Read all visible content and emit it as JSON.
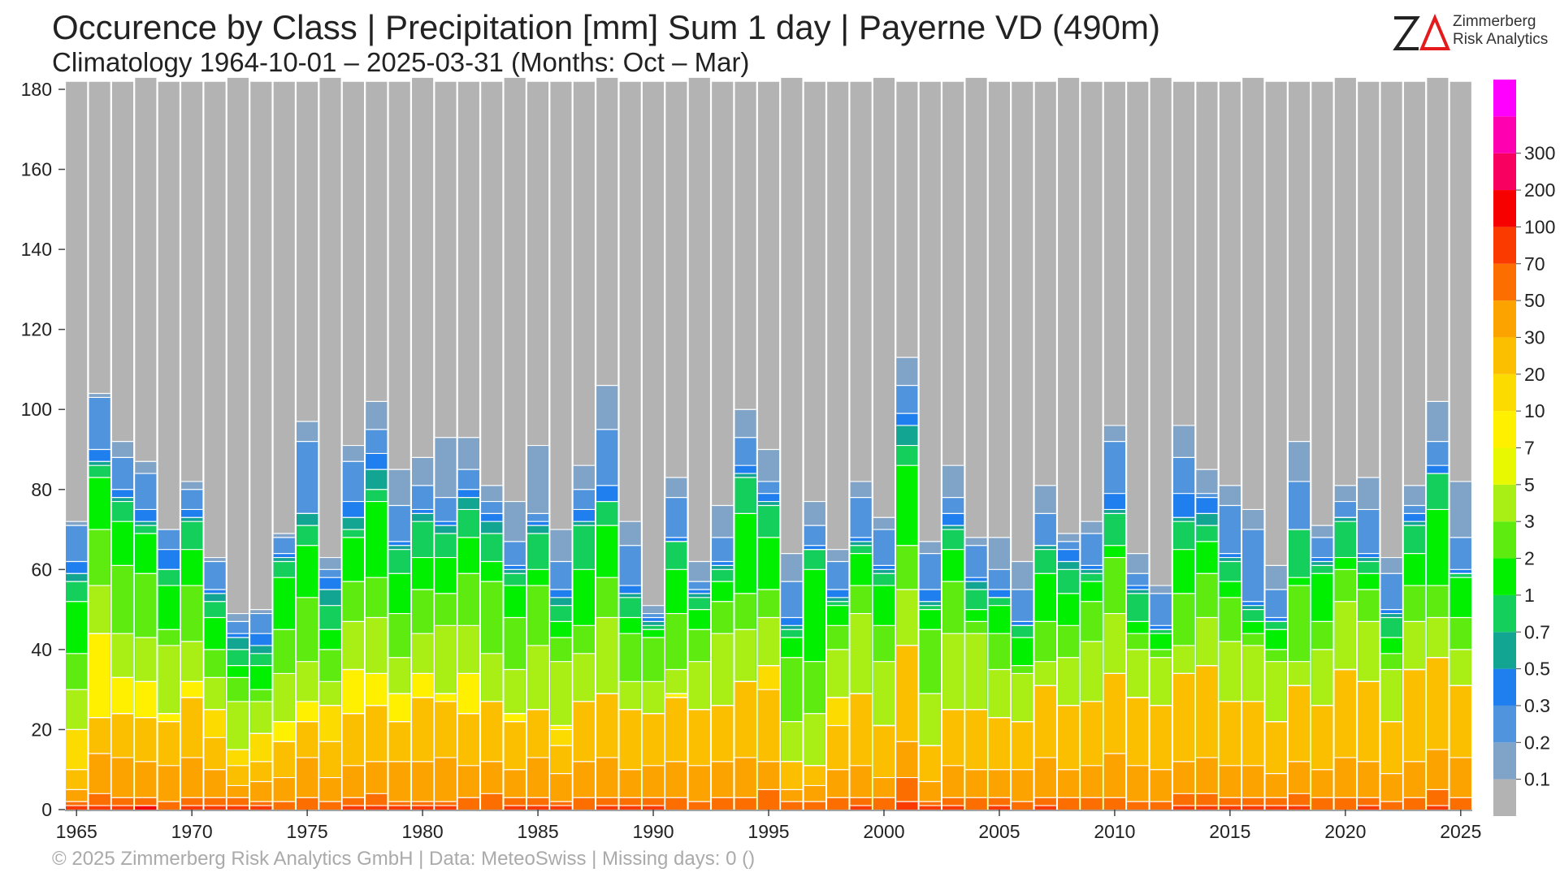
{
  "header": {
    "title": "Occurence by Class | Precipitation [mm] Sum 1 day | Payerne  VD (490m)",
    "subtitle": "Climatology 1964-10-01 – 2025-03-31 (Months: Oct – Mar)"
  },
  "footer": {
    "text": "©  2025 Zimmerberg Risk Analytics GmbH | Data: MeteoSwiss | Missing days: 0 ()"
  },
  "logo": {
    "line1": "Zimmerberg",
    "line2": "Risk Analytics"
  },
  "chart_data": {
    "type": "bar",
    "stacked": true,
    "title": "Occurence by Class | Precipitation [mm] Sum 1 day | Payerne  VD (490m)",
    "x": [
      1965,
      1966,
      1967,
      1968,
      1969,
      1970,
      1971,
      1972,
      1973,
      1974,
      1975,
      1976,
      1977,
      1978,
      1979,
      1980,
      1981,
      1982,
      1983,
      1984,
      1985,
      1986,
      1987,
      1988,
      1989,
      1990,
      1991,
      1992,
      1993,
      1994,
      1995,
      1996,
      1997,
      1998,
      1999,
      2000,
      2001,
      2002,
      2003,
      2004,
      2005,
      2006,
      2007,
      2008,
      2009,
      2010,
      2011,
      2012,
      2013,
      2014,
      2015,
      2016,
      2017,
      2018,
      2019,
      2020,
      2021,
      2022,
      2023,
      2024,
      2025
    ],
    "xticks": [
      1965,
      1970,
      1975,
      1980,
      1985,
      1990,
      1995,
      2000,
      2005,
      2010,
      2015,
      2020,
      2025
    ],
    "yticks": [
      0,
      20,
      40,
      60,
      80,
      100,
      120,
      140,
      160,
      180
    ],
    "ylim": [
      0,
      182
    ],
    "season_days": [
      182,
      182,
      182,
      183,
      182,
      182,
      182,
      183,
      182,
      182,
      182,
      183,
      182,
      182,
      182,
      183,
      182,
      182,
      182,
      183,
      182,
      182,
      182,
      183,
      182,
      182,
      182,
      183,
      182,
      182,
      182,
      183,
      182,
      182,
      182,
      183,
      182,
      182,
      182,
      183,
      182,
      182,
      182,
      183,
      182,
      182,
      182,
      183,
      182,
      182,
      182,
      183,
      182,
      182,
      182,
      183,
      182,
      182,
      182,
      183,
      182
    ],
    "class_labels": [
      "0.1",
      "0.2",
      "0.3",
      "0.5",
      "0.7",
      "1",
      "2",
      "3",
      "5",
      "7",
      "10",
      "20",
      "30",
      "50",
      "70",
      "100",
      "200",
      "300"
    ],
    "colorbar_colors": [
      "#b3b3b3",
      "#7fa4c8",
      "#4f94dc",
      "#1f7fee",
      "#12a591",
      "#14cf5c",
      "#00f000",
      "#5eec10",
      "#a9ee14",
      "#e8f800",
      "#fff000",
      "#fcdc00",
      "#fbbf00",
      "#fca300",
      "#fd6e00",
      "#fb3a00",
      "#f60000",
      "#f8005f",
      "#ff00b0",
      "#ff00ff"
    ],
    "non_dry_totals": [
      72,
      104,
      92,
      87,
      70,
      82,
      63,
      49,
      50,
      69,
      97,
      63,
      91,
      102,
      85,
      88,
      93,
      93,
      81,
      77,
      91,
      70,
      86,
      106,
      72,
      51,
      83,
      62,
      76,
      100,
      90,
      64,
      77,
      65,
      82,
      73,
      113,
      67,
      86,
      68,
      68,
      62,
      81,
      69,
      72,
      96,
      64,
      56,
      96,
      85,
      81,
      75,
      61,
      92,
      71,
      81,
      83,
      63,
      81,
      102,
      82
    ],
    "counts_ge": {
      "0.1": [
        72,
        104,
        92,
        87,
        70,
        82,
        63,
        49,
        50,
        69,
        97,
        63,
        91,
        102,
        85,
        88,
        93,
        93,
        81,
        77,
        91,
        70,
        86,
        106,
        72,
        51,
        83,
        62,
        76,
        100,
        90,
        64,
        77,
        65,
        82,
        73,
        113,
        67,
        86,
        68,
        68,
        62,
        81,
        69,
        72,
        96,
        64,
        56,
        96,
        85,
        81,
        75,
        61,
        92,
        71,
        81,
        83,
        63,
        81,
        102,
        82
      ],
      "0.2": [
        71,
        103,
        88,
        84,
        70,
        80,
        62,
        47,
        49,
        68,
        92,
        60,
        87,
        95,
        76,
        81,
        78,
        85,
        77,
        67,
        74,
        62,
        80,
        95,
        66,
        49,
        78,
        57,
        68,
        93,
        82,
        57,
        71,
        62,
        78,
        70,
        106,
        64,
        78,
        66,
        60,
        55,
        74,
        67,
        69,
        92,
        59,
        54,
        88,
        79,
        76,
        70,
        55,
        82,
        68,
        77,
        75,
        59,
        76,
        92,
        68
      ],
      "0.3": [
        62,
        90,
        80,
        75,
        65,
        75,
        55,
        44,
        44,
        64,
        74,
        58,
        77,
        89,
        67,
        75,
        72,
        80,
        74,
        61,
        72,
        55,
        75,
        81,
        56,
        48,
        68,
        55,
        62,
        86,
        79,
        48,
        66,
        55,
        68,
        61,
        99,
        55,
        74,
        58,
        55,
        47,
        66,
        65,
        61,
        79,
        56,
        46,
        79,
        78,
        64,
        52,
        48,
        70,
        63,
        73,
        64,
        50,
        74,
        86,
        60
      ],
      "0.5": [
        59,
        87,
        78,
        72,
        60,
        73,
        54,
        43,
        41,
        63,
        74,
        55,
        73,
        85,
        66,
        74,
        71,
        78,
        72,
        60,
        71,
        53,
        72,
        77,
        54,
        47,
        67,
        54,
        61,
        84,
        77,
        46,
        65,
        53,
        67,
        60,
        96,
        52,
        71,
        57,
        53,
        46,
        66,
        62,
        60,
        75,
        55,
        45,
        73,
        74,
        63,
        51,
        47,
        70,
        62,
        73,
        63,
        49,
        72,
        84,
        59
      ],
      "0.7": [
        57,
        86,
        77,
        71,
        60,
        72,
        52,
        40,
        39,
        62,
        71,
        51,
        70,
        80,
        65,
        72,
        69,
        75,
        69,
        59,
        69,
        51,
        71,
        77,
        53,
        46,
        67,
        53,
        60,
        83,
        76,
        45,
        65,
        52,
        66,
        59,
        91,
        51,
        70,
        55,
        53,
        46,
        65,
        60,
        59,
        74,
        54,
        45,
        72,
        71,
        62,
        50,
        47,
        70,
        61,
        72,
        62,
        48,
        71,
        84,
        59
      ],
      "1": [
        52,
        83,
        72,
        69,
        56,
        65,
        48,
        36,
        36,
        58,
        66,
        45,
        68,
        77,
        59,
        63,
        63,
        68,
        62,
        56,
        60,
        47,
        60,
        71,
        48,
        45,
        60,
        50,
        57,
        74,
        68,
        43,
        60,
        51,
        64,
        56,
        86,
        50,
        65,
        50,
        51,
        43,
        59,
        54,
        57,
        66,
        47,
        44,
        65,
        67,
        57,
        47,
        45,
        58,
        59,
        63,
        59,
        43,
        64,
        75,
        58
      ],
      "2": [
        39,
        70,
        61,
        59,
        45,
        56,
        40,
        33,
        30,
        45,
        53,
        40,
        57,
        58,
        49,
        55,
        54,
        59,
        57,
        48,
        56,
        43,
        46,
        58,
        44,
        43,
        49,
        45,
        52,
        54,
        55,
        38,
        37,
        46,
        56,
        46,
        66,
        45,
        57,
        47,
        44,
        36,
        47,
        46,
        52,
        63,
        44,
        40,
        54,
        59,
        53,
        44,
        40,
        56,
        47,
        60,
        55,
        39,
        56,
        56,
        48
      ],
      "3": [
        30,
        56,
        44,
        43,
        41,
        42,
        33,
        27,
        27,
        34,
        37,
        32,
        47,
        48,
        38,
        44,
        46,
        46,
        39,
        35,
        41,
        37,
        39,
        48,
        32,
        32,
        35,
        37,
        44,
        45,
        48,
        22,
        24,
        40,
        49,
        37,
        55,
        29,
        44,
        44,
        35,
        34,
        37,
        38,
        42,
        49,
        40,
        38,
        41,
        48,
        42,
        41,
        37,
        37,
        40,
        52,
        47,
        35,
        47,
        48,
        40
      ],
      "5": [
        20,
        44,
        33,
        32,
        24,
        32,
        25,
        15,
        19,
        22,
        27,
        26,
        35,
        34,
        29,
        34,
        29,
        34,
        27,
        24,
        25,
        21,
        27,
        29,
        25,
        24,
        29,
        25,
        26,
        32,
        36,
        12,
        11,
        28,
        29,
        21,
        41,
        16,
        25,
        25,
        23,
        22,
        31,
        26,
        27,
        34,
        28,
        26,
        34,
        36,
        27,
        27,
        22,
        31,
        26,
        35,
        32,
        22,
        35,
        38,
        31
      ],
      "7": [
        20,
        44,
        33,
        32,
        24,
        32,
        25,
        15,
        19,
        22,
        27,
        26,
        35,
        34,
        29,
        34,
        29,
        34,
        27,
        24,
        25,
        21,
        27,
        29,
        25,
        24,
        29,
        25,
        26,
        32,
        36,
        12,
        11,
        28,
        29,
        21,
        41,
        16,
        25,
        25,
        23,
        22,
        31,
        26,
        27,
        34,
        28,
        26,
        34,
        36,
        27,
        27,
        22,
        31,
        26,
        35,
        32,
        22,
        35,
        38,
        31
      ],
      "10": [
        20,
        23,
        24,
        23,
        22,
        28,
        25,
        15,
        19,
        17,
        22,
        26,
        24,
        26,
        22,
        28,
        27,
        24,
        27,
        22,
        25,
        20,
        27,
        29,
        25,
        24,
        28,
        25,
        26,
        32,
        36,
        12,
        11,
        28,
        29,
        21,
        41,
        16,
        25,
        25,
        23,
        22,
        31,
        26,
        27,
        34,
        28,
        26,
        34,
        36,
        27,
        27,
        22,
        31,
        26,
        35,
        32,
        22,
        35,
        38,
        31
      ],
      "20": [
        10,
        23,
        24,
        23,
        22,
        28,
        18,
        11,
        12,
        17,
        22,
        17,
        24,
        26,
        22,
        28,
        27,
        24,
        27,
        22,
        25,
        16,
        27,
        29,
        25,
        24,
        28,
        25,
        26,
        32,
        30,
        12,
        11,
        21,
        29,
        21,
        41,
        16,
        25,
        25,
        23,
        22,
        31,
        26,
        27,
        34,
        28,
        26,
        34,
        36,
        27,
        27,
        22,
        31,
        26,
        35,
        32,
        22,
        35,
        38,
        31
      ],
      "30": [
        5,
        14,
        13,
        12,
        11,
        13,
        10,
        6,
        7,
        8,
        13,
        8,
        11,
        12,
        12,
        12,
        13,
        11,
        12,
        10,
        13,
        9,
        12,
        13,
        10,
        11,
        12,
        11,
        12,
        13,
        12,
        5,
        6,
        10,
        11,
        8,
        17,
        7,
        11,
        10,
        10,
        10,
        13,
        10,
        11,
        14,
        11,
        10,
        12,
        13,
        11,
        11,
        9,
        12,
        10,
        13,
        12,
        9,
        12,
        15,
        13
      ],
      "50": [
        2,
        4,
        3,
        3,
        2,
        3,
        3,
        3,
        2,
        2,
        3,
        2,
        3,
        4,
        2,
        2,
        2,
        3,
        4,
        3,
        3,
        2,
        3,
        3,
        3,
        3,
        3,
        2,
        3,
        3,
        5,
        2,
        2,
        3,
        3,
        3,
        8,
        2,
        3,
        3,
        3,
        2,
        3,
        3,
        3,
        3,
        2,
        2,
        4,
        4,
        3,
        3,
        3,
        4,
        3,
        3,
        3,
        2,
        3,
        5,
        3
      ],
      "70": [
        1,
        1,
        1,
        1,
        0,
        1,
        1,
        1,
        1,
        0,
        0,
        0,
        1,
        1,
        1,
        1,
        1,
        0,
        0,
        1,
        1,
        1,
        0,
        1,
        1,
        1,
        0,
        0,
        0,
        0,
        0,
        0,
        0,
        0,
        1,
        0,
        2,
        1,
        1,
        0,
        1,
        0,
        1,
        0,
        0,
        0,
        0,
        0,
        1,
        1,
        1,
        1,
        1,
        1,
        0,
        0,
        1,
        0,
        0,
        1,
        0
      ],
      "100": [
        0,
        0,
        0,
        1,
        0,
        0,
        0,
        0,
        0,
        0,
        0,
        0,
        0,
        0,
        0,
        0,
        0,
        0,
        0,
        0,
        0,
        0,
        0,
        0,
        0,
        0,
        0,
        0,
        0,
        0,
        0,
        0,
        0,
        0,
        0,
        0,
        0,
        0,
        0,
        0,
        0,
        0,
        0,
        0,
        0,
        0,
        0,
        0,
        0,
        0,
        0,
        0,
        0,
        0,
        0,
        0,
        0,
        0,
        0,
        0,
        0
      ],
      "200": [
        0,
        0,
        0,
        0,
        0,
        0,
        0,
        0,
        0,
        0,
        0,
        0,
        0,
        0,
        0,
        0,
        0,
        0,
        0,
        0,
        0,
        0,
        0,
        0,
        0,
        0,
        0,
        0,
        0,
        0,
        0,
        0,
        0,
        0,
        0,
        0,
        0,
        0,
        0,
        0,
        0,
        0,
        0,
        0,
        0,
        0,
        0,
        0,
        0,
        0,
        0,
        0,
        0,
        0,
        0,
        0,
        0,
        0,
        0,
        0,
        0
      ],
      "300": [
        0,
        0,
        0,
        0,
        0,
        0,
        0,
        0,
        0,
        0,
        0,
        0,
        0,
        0,
        0,
        0,
        0,
        0,
        0,
        0,
        0,
        0,
        0,
        0,
        0,
        0,
        0,
        0,
        0,
        0,
        0,
        0,
        0,
        0,
        0,
        0,
        0,
        0,
        0,
        0,
        0,
        0,
        0,
        0,
        0,
        0,
        0,
        0,
        0,
        0,
        0,
        0,
        0,
        0,
        0,
        0,
        0,
        0,
        0,
        0,
        0
      ]
    },
    "legend_placement": "right colorbar",
    "grid": false
  }
}
